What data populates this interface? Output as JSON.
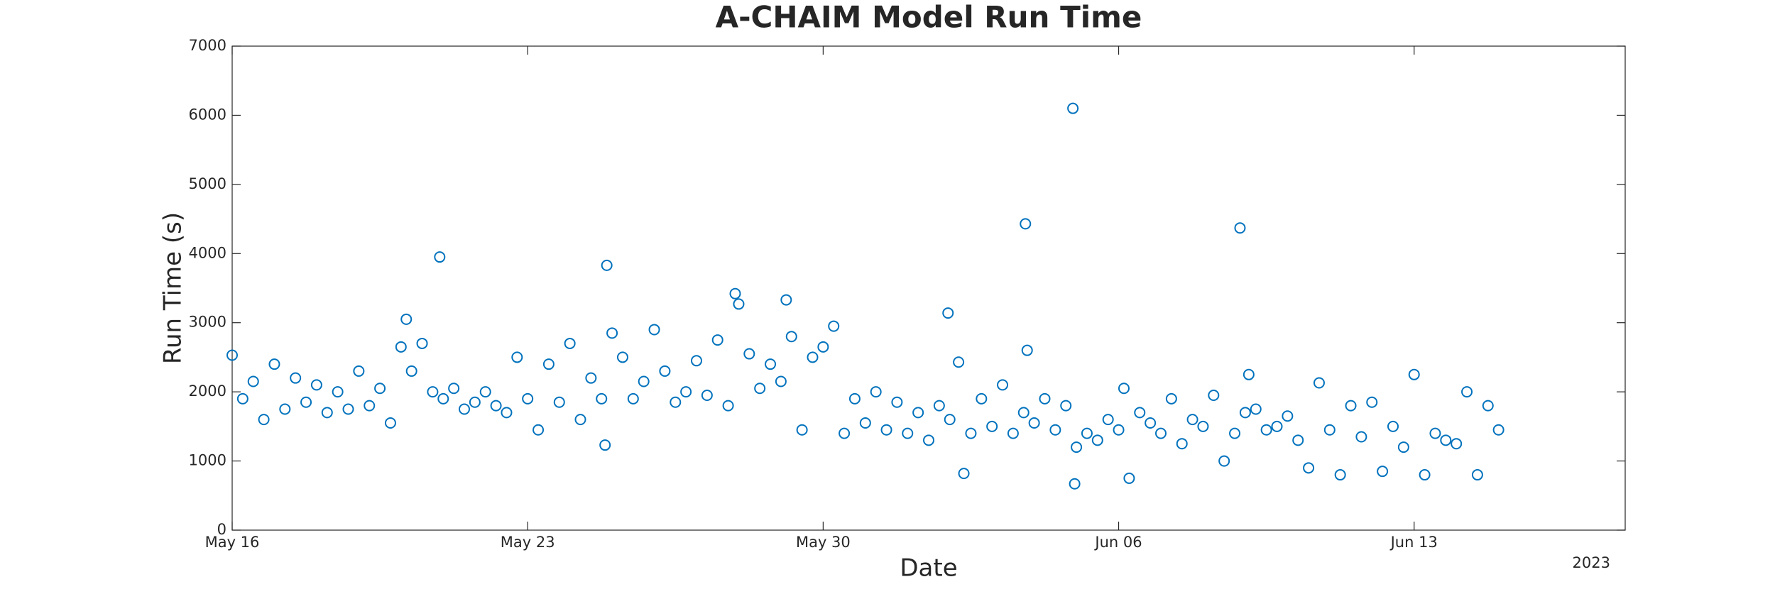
{
  "chart_data": {
    "type": "scatter",
    "title": "A-CHAIM Model Run Time",
    "x_label": "Date",
    "y_label": "Run Time (s)",
    "x_year_label": "2023",
    "color": "#0072bd",
    "x": [
      "2023-05-16T00:00",
      "2023-05-16T06:00",
      "2023-05-16T12:00",
      "2023-05-16T18:00",
      "2023-05-17T00:00",
      "2023-05-17T06:00",
      "2023-05-17T12:00",
      "2023-05-17T18:00",
      "2023-05-18T00:00",
      "2023-05-18T06:00",
      "2023-05-18T12:00",
      "2023-05-18T18:00",
      "2023-05-19T00:00",
      "2023-05-19T06:00",
      "2023-05-19T12:00",
      "2023-05-19T18:00",
      "2023-05-20T00:00",
      "2023-05-20T03:00",
      "2023-05-20T06:00",
      "2023-05-20T12:00",
      "2023-05-20T18:00",
      "2023-05-20T22:00",
      "2023-05-21T00:00",
      "2023-05-21T06:00",
      "2023-05-21T12:00",
      "2023-05-21T18:00",
      "2023-05-22T00:00",
      "2023-05-22T06:00",
      "2023-05-22T12:00",
      "2023-05-22T18:00",
      "2023-05-23T00:00",
      "2023-05-23T06:00",
      "2023-05-23T12:00",
      "2023-05-23T18:00",
      "2023-05-24T00:00",
      "2023-05-24T06:00",
      "2023-05-24T12:00",
      "2023-05-24T18:00",
      "2023-05-24T20:00",
      "2023-05-24T21:00",
      "2023-05-25T00:00",
      "2023-05-25T06:00",
      "2023-05-25T12:00",
      "2023-05-25T18:00",
      "2023-05-26T00:00",
      "2023-05-26T06:00",
      "2023-05-26T12:00",
      "2023-05-26T18:00",
      "2023-05-27T00:00",
      "2023-05-27T06:00",
      "2023-05-27T12:00",
      "2023-05-27T18:00",
      "2023-05-27T22:00",
      "2023-05-28T00:00",
      "2023-05-28T06:00",
      "2023-05-28T12:00",
      "2023-05-28T18:00",
      "2023-05-29T00:00",
      "2023-05-29T03:00",
      "2023-05-29T06:00",
      "2023-05-29T12:00",
      "2023-05-29T18:00",
      "2023-05-30T00:00",
      "2023-05-30T06:00",
      "2023-05-30T12:00",
      "2023-05-30T18:00",
      "2023-05-31T00:00",
      "2023-05-31T06:00",
      "2023-05-31T12:00",
      "2023-05-31T18:00",
      "2023-06-01T00:00",
      "2023-06-01T06:00",
      "2023-06-01T12:00",
      "2023-06-01T18:00",
      "2023-06-01T23:00",
      "2023-06-02T00:00",
      "2023-06-02T05:00",
      "2023-06-02T08:00",
      "2023-06-02T12:00",
      "2023-06-02T18:00",
      "2023-06-03T00:00",
      "2023-06-03T06:00",
      "2023-06-03T12:00",
      "2023-06-03T18:00",
      "2023-06-03T19:00",
      "2023-06-03T20:00",
      "2023-06-04T00:00",
      "2023-06-04T06:00",
      "2023-06-04T12:00",
      "2023-06-04T18:00",
      "2023-06-04T22:00",
      "2023-06-04T23:00",
      "2023-06-05T00:00",
      "2023-06-05T06:00",
      "2023-06-05T12:00",
      "2023-06-05T18:00",
      "2023-06-06T00:00",
      "2023-06-06T03:00",
      "2023-06-06T06:00",
      "2023-06-06T12:00",
      "2023-06-06T18:00",
      "2023-06-07T00:00",
      "2023-06-07T06:00",
      "2023-06-07T12:00",
      "2023-06-07T18:00",
      "2023-06-08T00:00",
      "2023-06-08T06:00",
      "2023-06-08T12:00",
      "2023-06-08T18:00",
      "2023-06-08T21:00",
      "2023-06-09T00:00",
      "2023-06-09T02:00",
      "2023-06-09T06:00",
      "2023-06-09T12:00",
      "2023-06-09T18:00",
      "2023-06-10T00:00",
      "2023-06-10T06:00",
      "2023-06-10T12:00",
      "2023-06-10T18:00",
      "2023-06-11T00:00",
      "2023-06-11T06:00",
      "2023-06-11T12:00",
      "2023-06-11T18:00",
      "2023-06-12T00:00",
      "2023-06-12T06:00",
      "2023-06-12T12:00",
      "2023-06-12T18:00",
      "2023-06-13T00:00",
      "2023-06-13T06:00",
      "2023-06-13T12:00",
      "2023-06-13T18:00",
      "2023-06-14T00:00",
      "2023-06-14T06:00",
      "2023-06-14T12:00",
      "2023-06-14T18:00",
      "2023-06-15T00:00"
    ],
    "values": [
      2530,
      1900,
      2150,
      1600,
      2400,
      1750,
      2200,
      1850,
      2100,
      1700,
      2000,
      1750,
      2300,
      1800,
      2050,
      1550,
      2650,
      3050,
      2300,
      2700,
      2000,
      3950,
      1900,
      2050,
      1750,
      1850,
      2000,
      1800,
      1700,
      2500,
      1900,
      1450,
      2400,
      1850,
      2700,
      1600,
      2200,
      1900,
      1230,
      3830,
      2850,
      2500,
      1900,
      2150,
      2900,
      2300,
      1850,
      2000,
      2450,
      1950,
      2750,
      1800,
      3420,
      3270,
      2550,
      2050,
      2400,
      2150,
      3330,
      2800,
      1450,
      2500,
      2650,
      2950,
      1400,
      1900,
      1550,
      2000,
      1450,
      1850,
      1400,
      1700,
      1300,
      1800,
      3140,
      1600,
      2430,
      820,
      1400,
      1900,
      1500,
      2100,
      1400,
      1700,
      4430,
      2600,
      1550,
      1900,
      1450,
      1800,
      6100,
      670,
      1200,
      1400,
      1300,
      1600,
      1450,
      2050,
      750,
      1700,
      1550,
      1400,
      1900,
      1250,
      1600,
      1500,
      1950,
      1000,
      1400,
      4370,
      1700,
      2250,
      1750,
      1450,
      1500,
      1650,
      1300,
      900,
      2130,
      1450,
      800,
      1800,
      1350,
      1850,
      850,
      1500,
      1200,
      2250,
      800,
      1400,
      1300,
      1250,
      2000,
      800,
      1800,
      1450
    ],
    "xlim": [
      "2023-05-16T00:00",
      "2023-06-18T00:00"
    ],
    "xticks": [
      {
        "value": "2023-05-16T00:00",
        "label": "May 16"
      },
      {
        "value": "2023-05-23T00:00",
        "label": "May 23"
      },
      {
        "value": "2023-05-30T00:00",
        "label": "May 30"
      },
      {
        "value": "2023-06-06T00:00",
        "label": "Jun 06"
      },
      {
        "value": "2023-06-13T00:00",
        "label": "Jun 13"
      }
    ],
    "ylim": [
      0,
      7000
    ],
    "yticks": [
      0,
      1000,
      2000,
      3000,
      4000,
      5000,
      6000,
      7000
    ]
  }
}
